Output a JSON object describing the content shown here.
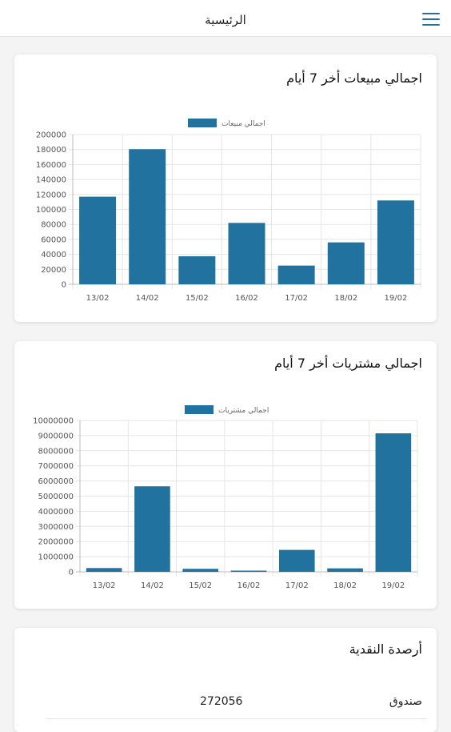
{
  "header": {
    "title": "الرئيسية"
  },
  "sales_card": {
    "title": "اجمالي مبيعات أخر 7 أيام"
  },
  "purchases_card": {
    "title": "اجمالي مشتريات أخر 7 أيام"
  },
  "cash_card": {
    "title": "أرصدة النقدية",
    "rows": [
      {
        "label": "صندوق",
        "value": "272056"
      }
    ]
  },
  "colors": {
    "bar": "#21729f",
    "accent": "#2a6f99"
  },
  "chart_data": [
    {
      "type": "bar",
      "title": "",
      "legend": "اجمالي مبيعات",
      "legend_position": "top",
      "categories": [
        "13/02",
        "14/02",
        "15/02",
        "16/02",
        "17/02",
        "18/02",
        "19/02"
      ],
      "series": [
        {
          "name": "اجمالي مبيعات",
          "values": [
            117000,
            180500,
            37500,
            82000,
            25000,
            56000,
            112000
          ]
        }
      ],
      "ylim": [
        0,
        200000
      ],
      "yticks": [
        "0",
        "20000",
        "40000",
        "60000",
        "80000",
        "100000",
        "120000",
        "140000",
        "160000",
        "180000",
        "200000"
      ],
      "grid": true
    },
    {
      "type": "bar",
      "title": "",
      "legend": "اجمالي مشتريات",
      "legend_position": "top",
      "categories": [
        "13/02",
        "14/02",
        "15/02",
        "16/02",
        "17/02",
        "18/02",
        "19/02"
      ],
      "series": [
        {
          "name": "اجمالي مشتريات",
          "values": [
            250000,
            5650000,
            200000,
            80000,
            1450000,
            230000,
            9150000
          ]
        }
      ],
      "ylim": [
        0,
        10000000
      ],
      "yticks": [
        "0",
        "1000000",
        "2000000",
        "3000000",
        "4000000",
        "5000000",
        "6000000",
        "7000000",
        "8000000",
        "9000000",
        "10000000"
      ],
      "grid": true
    }
  ]
}
